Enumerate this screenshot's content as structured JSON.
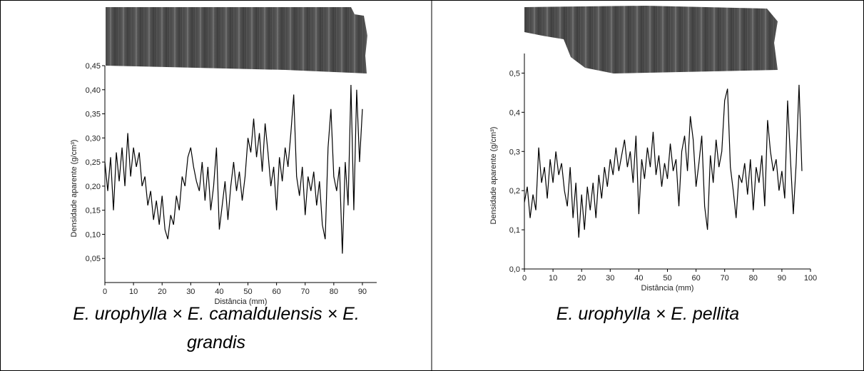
{
  "chart_data": [
    {
      "type": "line",
      "caption": "E. urophylla × E. camaldulensis × E. grandis",
      "x_label": "Distância (mm)",
      "y_label": "Densidade aparente (g/cm³)",
      "x": [
        0,
        1,
        2,
        3,
        4,
        5,
        6,
        7,
        8,
        9,
        10,
        11,
        12,
        13,
        14,
        15,
        16,
        17,
        18,
        19,
        20,
        21,
        22,
        23,
        24,
        25,
        26,
        27,
        28,
        29,
        30,
        31,
        32,
        33,
        34,
        35,
        36,
        37,
        38,
        39,
        40,
        41,
        42,
        43,
        44,
        45,
        46,
        47,
        48,
        49,
        50,
        51,
        52,
        53,
        54,
        55,
        56,
        57,
        58,
        59,
        60,
        61,
        62,
        63,
        64,
        65,
        66,
        67,
        68,
        69,
        70,
        71,
        72,
        73,
        74,
        75,
        76,
        77,
        78,
        79,
        80,
        81,
        82,
        83,
        84,
        85,
        86,
        87,
        88,
        89,
        90
      ],
      "values": [
        0.25,
        0.19,
        0.26,
        0.15,
        0.27,
        0.21,
        0.28,
        0.2,
        0.31,
        0.22,
        0.28,
        0.24,
        0.27,
        0.2,
        0.22,
        0.16,
        0.19,
        0.13,
        0.17,
        0.12,
        0.18,
        0.11,
        0.09,
        0.14,
        0.12,
        0.18,
        0.15,
        0.22,
        0.2,
        0.26,
        0.28,
        0.24,
        0.21,
        0.19,
        0.25,
        0.17,
        0.24,
        0.15,
        0.2,
        0.28,
        0.11,
        0.16,
        0.21,
        0.13,
        0.2,
        0.25,
        0.19,
        0.23,
        0.17,
        0.22,
        0.3,
        0.27,
        0.34,
        0.26,
        0.31,
        0.23,
        0.33,
        0.27,
        0.2,
        0.24,
        0.15,
        0.26,
        0.21,
        0.28,
        0.24,
        0.31,
        0.39,
        0.22,
        0.18,
        0.24,
        0.14,
        0.22,
        0.19,
        0.23,
        0.16,
        0.21,
        0.12,
        0.09,
        0.28,
        0.36,
        0.22,
        0.19,
        0.24,
        0.06,
        0.25,
        0.16,
        0.41,
        0.15,
        0.4,
        0.25,
        0.36
      ],
      "color": "#000000",
      "xlim": [
        0,
        95
      ],
      "xticks": [
        0,
        10,
        20,
        30,
        40,
        50,
        60,
        70,
        80,
        90
      ],
      "ylim": [
        0,
        0.45
      ],
      "yticks": [
        {
          "value": 0.05,
          "label": "0,05"
        },
        {
          "value": 0.1,
          "label": "0,10"
        },
        {
          "value": 0.15,
          "label": "0,15"
        },
        {
          "value": 0.2,
          "label": "0,20"
        },
        {
          "value": 0.25,
          "label": "0,25"
        },
        {
          "value": 0.3,
          "label": "0,30"
        },
        {
          "value": 0.35,
          "label": "0,35"
        },
        {
          "value": 0.4,
          "label": "0,40"
        },
        {
          "value": 0.45,
          "label": "0,45"
        }
      ]
    },
    {
      "type": "line",
      "caption": "E. urophylla × E. pellita",
      "x_label": "Distância (mm)",
      "y_label": "Densidade aparente (g/cm³)",
      "x": [
        0,
        1,
        2,
        3,
        4,
        5,
        6,
        7,
        8,
        9,
        10,
        11,
        12,
        13,
        14,
        15,
        16,
        17,
        18,
        19,
        20,
        21,
        22,
        23,
        24,
        25,
        26,
        27,
        28,
        29,
        30,
        31,
        32,
        33,
        34,
        35,
        36,
        37,
        38,
        39,
        40,
        41,
        42,
        43,
        44,
        45,
        46,
        47,
        48,
        49,
        50,
        51,
        52,
        53,
        54,
        55,
        56,
        57,
        58,
        59,
        60,
        61,
        62,
        63,
        64,
        65,
        66,
        67,
        68,
        69,
        70,
        71,
        72,
        73,
        74,
        75,
        76,
        77,
        78,
        79,
        80,
        81,
        82,
        83,
        84,
        85,
        86,
        87,
        88,
        89,
        90,
        91,
        92,
        93,
        94,
        95,
        96,
        97
      ],
      "values": [
        0.17,
        0.21,
        0.13,
        0.19,
        0.15,
        0.31,
        0.22,
        0.26,
        0.18,
        0.28,
        0.22,
        0.3,
        0.24,
        0.27,
        0.2,
        0.16,
        0.26,
        0.13,
        0.22,
        0.08,
        0.19,
        0.1,
        0.21,
        0.15,
        0.22,
        0.13,
        0.24,
        0.18,
        0.26,
        0.21,
        0.28,
        0.24,
        0.31,
        0.25,
        0.29,
        0.33,
        0.26,
        0.3,
        0.22,
        0.34,
        0.14,
        0.28,
        0.23,
        0.31,
        0.26,
        0.35,
        0.24,
        0.29,
        0.21,
        0.27,
        0.23,
        0.32,
        0.25,
        0.28,
        0.16,
        0.3,
        0.34,
        0.25,
        0.39,
        0.33,
        0.21,
        0.27,
        0.34,
        0.16,
        0.1,
        0.29,
        0.22,
        0.33,
        0.26,
        0.3,
        0.43,
        0.46,
        0.26,
        0.2,
        0.13,
        0.24,
        0.22,
        0.27,
        0.19,
        0.28,
        0.15,
        0.26,
        0.22,
        0.29,
        0.16,
        0.38,
        0.3,
        0.25,
        0.28,
        0.2,
        0.25,
        0.18,
        0.43,
        0.28,
        0.14,
        0.27,
        0.47,
        0.25
      ],
      "color": "#000000",
      "xlim": [
        0,
        100
      ],
      "xticks": [
        0,
        10,
        20,
        30,
        40,
        50,
        60,
        70,
        80,
        90,
        100
      ],
      "ylim": [
        0,
        0.55
      ],
      "yticks": [
        {
          "value": 0,
          "label": "0,0"
        },
        {
          "value": 0.1,
          "label": "0,1"
        },
        {
          "value": 0.2,
          "label": "0,2"
        },
        {
          "value": 0.3,
          "label": "0,3"
        },
        {
          "value": 0.4,
          "label": "0,4"
        },
        {
          "value": 0.5,
          "label": "0,5"
        }
      ]
    }
  ]
}
